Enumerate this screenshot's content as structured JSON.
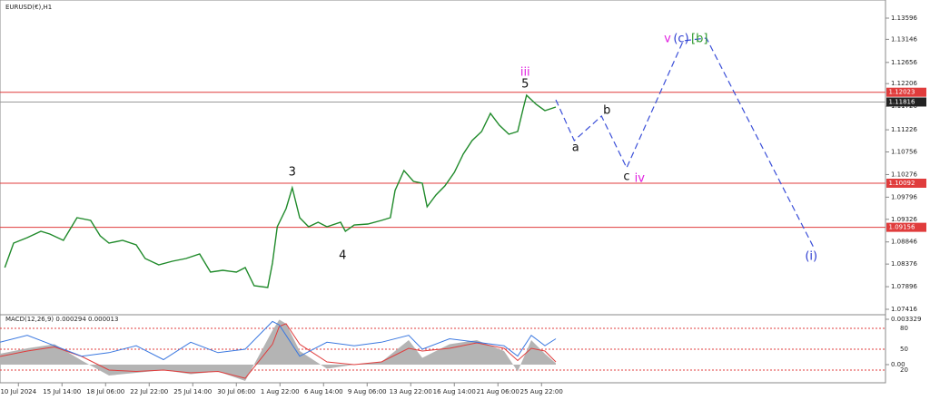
{
  "chart_data": [
    {
      "type": "line",
      "title": "EURUSD(€),H1",
      "color": "#1f8a2a",
      "x": [
        7,
        20,
        40,
        60,
        73,
        93,
        113,
        133,
        147,
        160,
        180,
        200,
        213,
        233,
        253,
        273,
        293,
        309,
        327,
        347,
        360,
        373,
        393,
        400,
        407,
        420,
        429,
        440,
        453,
        467,
        480,
        500,
        507,
        520,
        540,
        560,
        573,
        580,
        593,
        607,
        620,
        627,
        640,
        653,
        667,
        680,
        693,
        707,
        720,
        733,
        747,
        760,
        768,
        773,
        787,
        800,
        816
      ],
      "series": [
        {
          "values": [
            1.08301,
            1.08821,
            1.08937,
            1.09072,
            1.09014,
            1.08879,
            1.0936,
            1.09303,
            1.08975,
            1.08821,
            1.08879,
            1.08783,
            1.08494,
            1.08359,
            1.08436,
            1.08494,
            1.0859,
            1.08205,
            1.08244,
            1.08205,
            1.08301,
            1.07916,
            1.07878,
            1.08398,
            1.09168,
            1.09553,
            1.09996,
            1.0936,
            1.09168,
            1.09264,
            1.09168,
            1.09264,
            1.09072,
            1.09206,
            1.09226,
            1.09303,
            1.0936,
            1.09938,
            1.10361,
            1.1013,
            1.10092,
            1.09591,
            1.09842,
            1.10034,
            1.10323,
            1.10708,
            1.10997,
            1.11189,
            1.11574,
            1.11324,
            1.11132,
            1.11189,
            1.11671,
            1.11959,
            1.11767,
            1.11632,
            1.11709
          ]
        }
      ],
      "xlim": [
        0,
        1300
      ],
      "xticks": [
        {
          "value": 27,
          "label": "10 Jul 2024"
        },
        {
          "value": 91,
          "label": "15 Jul 14:00"
        },
        {
          "value": 155,
          "label": "18 Jul 06:00"
        },
        {
          "value": 219,
          "label": "22 Jul 22:00"
        },
        {
          "value": 283,
          "label": "25 Jul 14:00"
        },
        {
          "value": 347,
          "label": "30 Jul 06:00"
        },
        {
          "value": 411,
          "label": "1 Aug 22:00"
        },
        {
          "value": 475,
          "label": "6 Aug 14:00"
        },
        {
          "value": 539,
          "label": "9 Aug 06:00"
        },
        {
          "value": 603,
          "label": "13 Aug 22:00"
        },
        {
          "value": 667,
          "label": "16 Aug 14:00"
        },
        {
          "value": 731,
          "label": "21 Aug 06:00"
        },
        {
          "value": 795,
          "label": "25 Aug 22:00"
        }
      ],
      "ylim": [
        1.07339,
        1.13981
      ],
      "yticks": [
        1.13596,
        1.13146,
        1.12656,
        1.12206,
        1.11726,
        1.11226,
        1.10756,
        1.10276,
        1.09796,
        1.09326,
        1.08846,
        1.08376,
        1.07896,
        1.07416
      ],
      "levels": [
        {
          "value": 1.12023,
          "color": "#e03c3c"
        },
        {
          "value": 1.10092,
          "color": "#e03c3c"
        },
        {
          "value": 1.09156,
          "color": "#e03c3c"
        }
      ],
      "current_price": {
        "value": 1.11816,
        "color": "#9a9a9a"
      },
      "projection": {
        "color": "#3b4fd8",
        "x": [
          816,
          843,
          883,
          920,
          1003,
          1037,
          1196
        ],
        "y": [
          1.11863,
          1.10997,
          1.11517,
          1.10419,
          1.13115,
          1.13172,
          1.08686
        ]
      },
      "annotations": [
        {
          "text": "iii",
          "x": 771,
          "y": 1.12441,
          "color": "#e020e0"
        },
        {
          "text": "5",
          "x": 771,
          "y": 1.1219,
          "color": "#111111"
        },
        {
          "text": "3",
          "x": 429,
          "y": 1.10323,
          "color": "#111111"
        },
        {
          "text": "4",
          "x": 503,
          "y": 1.08552,
          "color": "#111111"
        },
        {
          "text": "a",
          "x": 845,
          "y": 1.10843,
          "color": "#111111"
        },
        {
          "text": "b",
          "x": 891,
          "y": 1.11632,
          "color": "#111111"
        },
        {
          "text": "c",
          "x": 920,
          "y": 1.10227,
          "color": "#111111"
        },
        {
          "text": "iv",
          "x": 939,
          "y": 1.10188,
          "color": "#e020e0"
        },
        {
          "text": "v",
          "x": 980,
          "y": 1.13153,
          "color": "#e020e0"
        },
        {
          "text": "(c)",
          "x": 1000,
          "y": 1.13153,
          "color": "#2a3ad0"
        },
        {
          "text": "[b]",
          "x": 1027,
          "y": 1.13153,
          "color": "#2e9a2e"
        },
        {
          "text": "(i)",
          "x": 1191,
          "y": 1.08532,
          "color": "#2a3ad0"
        }
      ]
    },
    {
      "type": "macd",
      "title": "MACD(12,26,9) 0.000294 0.000013",
      "x": [
        0,
        40,
        80,
        120,
        160,
        200,
        240,
        280,
        320,
        360,
        400,
        410,
        420,
        440,
        480,
        520,
        560,
        600,
        620,
        660,
        700,
        740,
        760,
        780,
        800,
        816
      ],
      "series": [
        {
          "kind": "area",
          "color": "#b4b4b4",
          "values": [
            0.0008,
            0.0012,
            0.0015,
            0.0003,
            -0.0008,
            -0.0006,
            -0.0004,
            -0.0007,
            -0.0005,
            -0.0012,
            0.0025,
            0.0033,
            0.003,
            0.001,
            -0.0003,
            0,
            0.0002,
            0.0018,
            0.0005,
            0.0015,
            0.0018,
            0.001,
            -0.0005,
            0.0018,
            0.0008,
            0.0001
          ]
        },
        {
          "kind": "line",
          "color": "#e03c3c",
          "values": [
            0.0006,
            0.001,
            0.0013,
            0.0006,
            -0.0004,
            -0.0005,
            -0.0004,
            -0.0006,
            -0.0005,
            -0.001,
            0.0015,
            0.0028,
            0.003,
            0.0015,
            0.0002,
            0,
            0.0002,
            0.0012,
            0.001,
            0.0012,
            0.0016,
            0.0012,
            0.0003,
            0.0012,
            0.001,
            0.0002
          ]
        },
        {
          "kind": "line",
          "axis": "y2",
          "color": "#3a78e0",
          "values": [
            60,
            70,
            55,
            40,
            45,
            55,
            35,
            60,
            45,
            50,
            90,
            85,
            70,
            40,
            60,
            55,
            60,
            70,
            50,
            65,
            60,
            55,
            40,
            70,
            55,
            65
          ]
        }
      ],
      "ylim": [
        -0.0012,
        0.003462
      ],
      "yticks": [
        {
          "value": 0.003329,
          "label": "0.003329"
        },
        {
          "value": 0,
          "label": "0.00"
        }
      ],
      "y2lim": [
        4.3,
        95.7
      ],
      "y2ticks": [
        80,
        50,
        20
      ]
    }
  ]
}
